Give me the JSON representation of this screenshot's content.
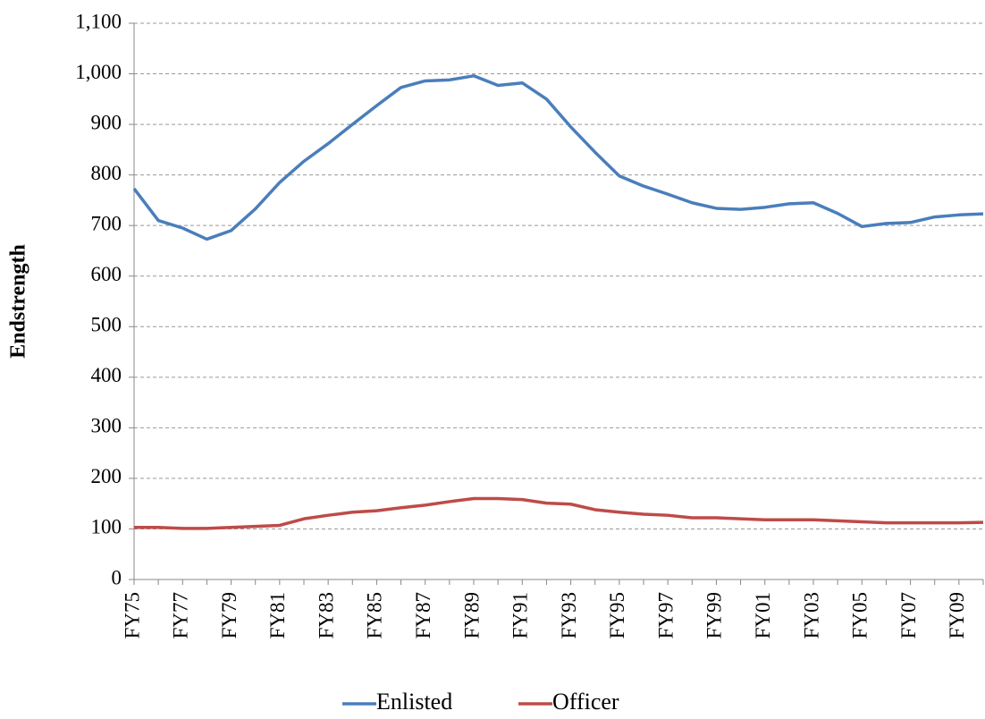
{
  "chart_data": {
    "type": "line",
    "y_label": "Endstrength",
    "categories": [
      "FY75",
      null,
      "FY77",
      null,
      "FY79",
      null,
      "FY81",
      null,
      "FY83",
      null,
      "FY85",
      null,
      "FY87",
      null,
      "FY89",
      null,
      "FY91",
      null,
      "FY93",
      null,
      "FY95",
      null,
      "FY97",
      null,
      "FY99",
      null,
      "FY01",
      null,
      "FY03",
      null,
      "FY05",
      null,
      "FY07",
      null,
      "FY09",
      null
    ],
    "series": [
      {
        "name": "Enlisted",
        "color": "#4a7ebb",
        "values": [
          773,
          710,
          695,
          673,
          690,
          733,
          785,
          827,
          862,
          900,
          937,
          973,
          986,
          988,
          996,
          977,
          982,
          950,
          895,
          845,
          798,
          778,
          762,
          745,
          734,
          732,
          736,
          743,
          745,
          724,
          698,
          704,
          706,
          717,
          721,
          723
        ]
      },
      {
        "name": "Officer",
        "color": "#be4b48",
        "values": [
          103,
          103,
          101,
          101,
          103,
          105,
          107,
          120,
          127,
          133,
          136,
          142,
          147,
          154,
          160,
          160,
          158,
          151,
          149,
          138,
          133,
          129,
          127,
          122,
          122,
          120,
          118,
          118,
          118,
          116,
          114,
          112,
          112,
          112,
          112,
          113
        ]
      }
    ],
    "ylim": [
      0,
      1100
    ],
    "yticks": [
      0,
      100,
      200,
      300,
      400,
      500,
      600,
      700,
      800,
      900,
      {
        "value": 1000,
        "label": "1,000"
      },
      {
        "value": 1100,
        "label": "1,100"
      }
    ],
    "grid": true,
    "legend": "bottom"
  }
}
